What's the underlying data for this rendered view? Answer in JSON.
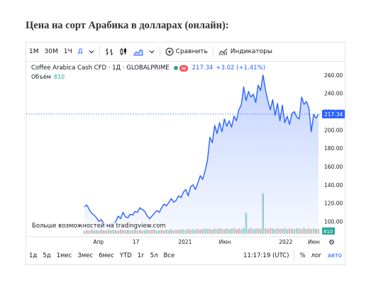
{
  "page": {
    "title": "Цена на сорт Арабика в долларах (онлайн):"
  },
  "toolbar": {
    "intervals": [
      "1М",
      "30М",
      "1Ч",
      "Д"
    ],
    "active_interval": "Д",
    "compare_label": "Сравнить",
    "indicators_label": "Индикаторы"
  },
  "legend": {
    "symbol": "Coffee Arabica Cash CFD · 1Д · GLOBALPRIME",
    "price": "217.34",
    "change": "+3.02 (+1.41%)",
    "volume_label": "Объём",
    "volume_value": "810"
  },
  "brand_text": "Больше возможностей на tradingview.com",
  "price_badge": "217.34",
  "volume_badge": "810",
  "bottom_bar": {
    "ranges": [
      "1д",
      "5д",
      "1мес",
      "3мес",
      "6мес",
      "YTD",
      "1г",
      "5л",
      "Все"
    ],
    "time": "11:17:19 (UTC)",
    "percent": "%",
    "log": "лог",
    "auto": "авто"
  },
  "colors": {
    "line": "#2962ff",
    "accent": "#2962ff",
    "up": "#26a69a",
    "down": "#ef5350"
  },
  "chart_data": {
    "type": "area",
    "title": "",
    "y_ticks": [
      "100.00",
      "120.00",
      "140.00",
      "160.00",
      "180.00",
      "200.00",
      "220.00",
      "240.00",
      "260.00"
    ],
    "x_ticks": [
      "Апр",
      "17",
      "2021",
      "Июн",
      "2022",
      "Июн"
    ],
    "ylim": [
      88,
      263
    ],
    "series": [
      {
        "values": [
          116,
          118,
          113,
          109,
          107,
          104,
          100,
          102,
          98,
          96,
          95,
          97,
          97,
          100,
          106,
          103,
          110,
          105,
          104,
          108,
          107,
          111,
          110,
          115,
          113,
          111,
          106,
          103,
          106,
          109,
          112,
          110,
          115,
          119,
          117,
          121,
          125,
          121,
          123,
          128,
          126,
          132,
          135,
          128,
          138,
          140,
          135,
          142,
          150,
          146,
          155,
          167,
          192,
          186,
          205,
          196,
          208,
          198,
          212,
          204,
          210,
          203,
          215,
          210,
          222,
          227,
          247,
          232,
          242,
          236,
          239,
          230,
          249,
          243,
          260,
          244,
          232,
          222,
          233,
          216,
          229,
          210,
          227,
          208,
          215,
          206,
          218,
          220,
          214,
          212,
          236,
          228,
          231,
          224,
          198,
          217,
          213,
          217
        ]
      }
    ],
    "volume": {
      "values": [
        0.2,
        0.25,
        0.2,
        0.3,
        0.22,
        0.25,
        0.2,
        0.28,
        0.24,
        0.2,
        0.3,
        0.22,
        0.26,
        0.24,
        0.2,
        0.3,
        0.25,
        0.22,
        0.28,
        0.2,
        0.25,
        0.3,
        0.22,
        0.26,
        0.2,
        0.24,
        0.28,
        0.22,
        0.25,
        0.3,
        0.2,
        0.24,
        0.26,
        0.22,
        0.28,
        0.25,
        0.3,
        0.22,
        0.26,
        0.24,
        0.3,
        0.28,
        0.25,
        0.32,
        0.27,
        0.3,
        0.26,
        0.33,
        0.28,
        0.3,
        0.35,
        0.3,
        0.32,
        0.28,
        0.34,
        0.3,
        0.36,
        0.32,
        0.3,
        0.35,
        0.3,
        0.33,
        0.36,
        0.3,
        0.34,
        0.3,
        0.36,
        1.35,
        0.32,
        0.38,
        0.3,
        0.34,
        0.36,
        0.32,
        2.6,
        0.35,
        0.3,
        0.38,
        0.34,
        0.3,
        0.36,
        0.32,
        0.34,
        0.36,
        0.3,
        0.35,
        0.32,
        0.3,
        0.36,
        0.34,
        0.3,
        0.38,
        0.32,
        0.35,
        0.3,
        0.34,
        0.32,
        0.3
      ],
      "up": [
        1,
        0,
        1,
        0,
        1,
        1,
        0,
        1,
        0,
        1,
        0,
        1,
        1,
        0,
        1,
        0,
        1,
        0,
        1,
        1,
        0,
        1,
        0,
        1,
        0,
        1,
        1,
        0,
        1,
        0,
        1,
        1,
        0,
        1,
        0,
        1,
        1,
        0,
        1,
        0,
        1,
        1,
        0,
        1,
        0,
        1,
        1,
        0,
        1,
        0,
        1,
        1,
        0,
        1,
        0,
        1,
        1,
        0,
        1,
        0,
        1,
        1,
        0,
        1,
        0,
        1,
        1,
        1,
        1,
        0,
        1,
        1,
        0,
        1,
        1,
        0,
        1,
        0,
        1,
        1,
        0,
        1,
        0,
        1,
        1,
        0,
        1,
        0,
        1,
        1,
        0,
        1,
        0,
        1,
        0,
        1,
        1,
        0
      ]
    }
  }
}
